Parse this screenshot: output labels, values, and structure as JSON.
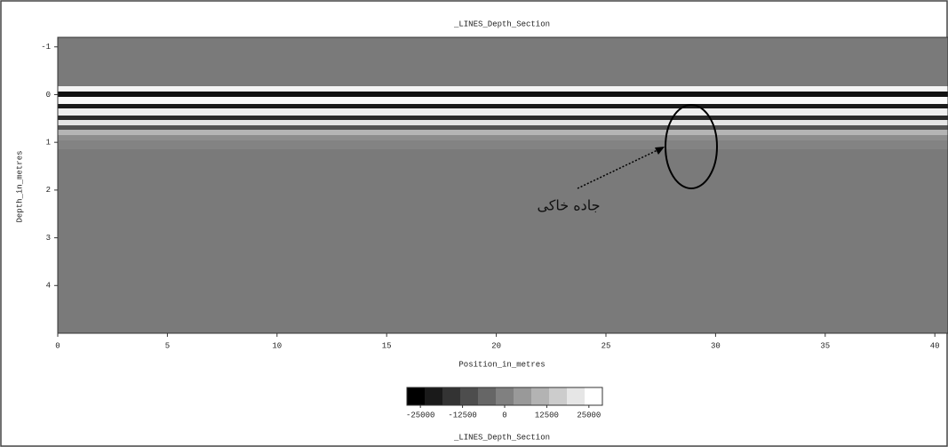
{
  "chart_data": {
    "type": "radargram",
    "title": "_LINES_Depth_Section",
    "x_label": "Position_in_metres",
    "y_label": "Depth_in_metres",
    "xlim": [
      0,
      40.6
    ],
    "xticks": [
      0,
      5,
      10,
      15,
      20,
      25,
      30,
      35,
      40
    ],
    "ylim": [
      5,
      -1.2
    ],
    "yticks": [
      -1,
      0,
      1,
      2,
      3,
      4
    ],
    "background_color": "#7a7a7a",
    "colorbar": {
      "label": "_LINES_Depth_Section",
      "clim": [
        -29000,
        29000
      ],
      "ticks": [
        -25000,
        -12500,
        0,
        12500,
        25000
      ],
      "steps": 11
    },
    "annotation": {
      "text": "جاده خاکی"
    }
  }
}
